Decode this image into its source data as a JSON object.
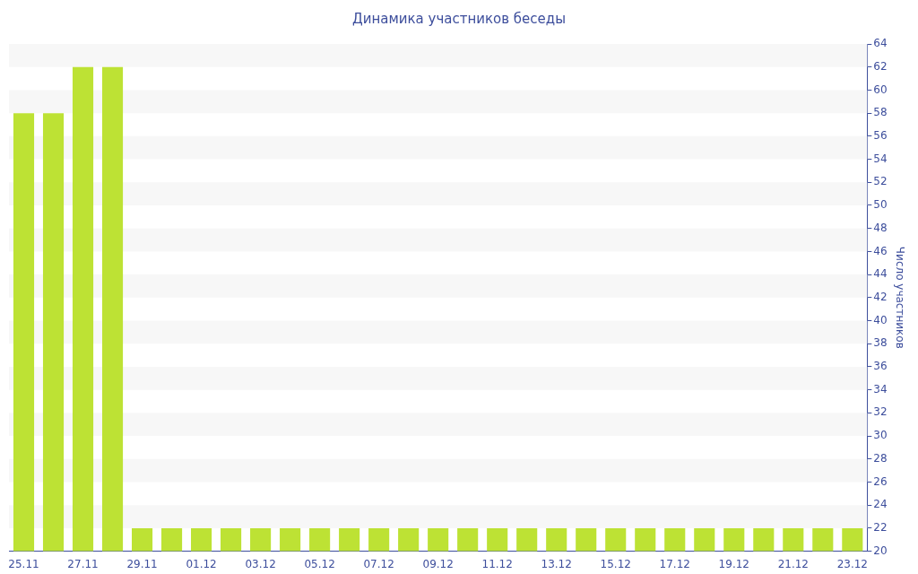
{
  "chart_data": {
    "type": "bar",
    "title": "Динамика участников беседы",
    "ylabel": "Число участников",
    "categories": [
      "25.11",
      null,
      "27.11",
      null,
      "29.11",
      null,
      "01.12",
      null,
      "03.12",
      null,
      "05.12",
      null,
      "07.12",
      null,
      "09.12",
      null,
      "11.12",
      null,
      "13.12",
      null,
      "15.12",
      null,
      "17.12",
      null,
      "19.12",
      null,
      "21.12",
      null,
      "23.12"
    ],
    "values": [
      58,
      58,
      62,
      62,
      22,
      22,
      22,
      22,
      22,
      22,
      22,
      22,
      22,
      22,
      22,
      22,
      22,
      22,
      22,
      22,
      22,
      22,
      22,
      22,
      22,
      22,
      22,
      22,
      22
    ],
    "color": "#bde234",
    "ylim": [
      20,
      64
    ],
    "yticks": [
      20,
      22,
      24,
      26,
      28,
      30,
      32,
      34,
      36,
      38,
      40,
      42,
      44,
      46,
      48,
      50,
      52,
      54,
      56,
      58,
      60,
      62,
      64
    ],
    "legend": false,
    "bands": [
      {
        "axis": "y",
        "from": 22,
        "to": 24,
        "color": "#f7f7f7"
      },
      {
        "axis": "y",
        "from": 26,
        "to": 28,
        "color": "#f7f7f7"
      },
      {
        "axis": "y",
        "from": 30,
        "to": 32,
        "color": "#f7f7f7"
      },
      {
        "axis": "y",
        "from": 34,
        "to": 36,
        "color": "#f7f7f7"
      },
      {
        "axis": "y",
        "from": 38,
        "to": 40,
        "color": "#f7f7f7"
      },
      {
        "axis": "y",
        "from": 42,
        "to": 44,
        "color": "#f7f7f7"
      },
      {
        "axis": "y",
        "from": 46,
        "to": 48,
        "color": "#f7f7f7"
      },
      {
        "axis": "y",
        "from": 50,
        "to": 52,
        "color": "#f7f7f7"
      },
      {
        "axis": "y",
        "from": 54,
        "to": 56,
        "color": "#f7f7f7"
      },
      {
        "axis": "y",
        "from": 58,
        "to": 60,
        "color": "#f7f7f7"
      },
      {
        "axis": "y",
        "from": 62,
        "to": 64,
        "color": "#f7f7f7"
      }
    ]
  }
}
